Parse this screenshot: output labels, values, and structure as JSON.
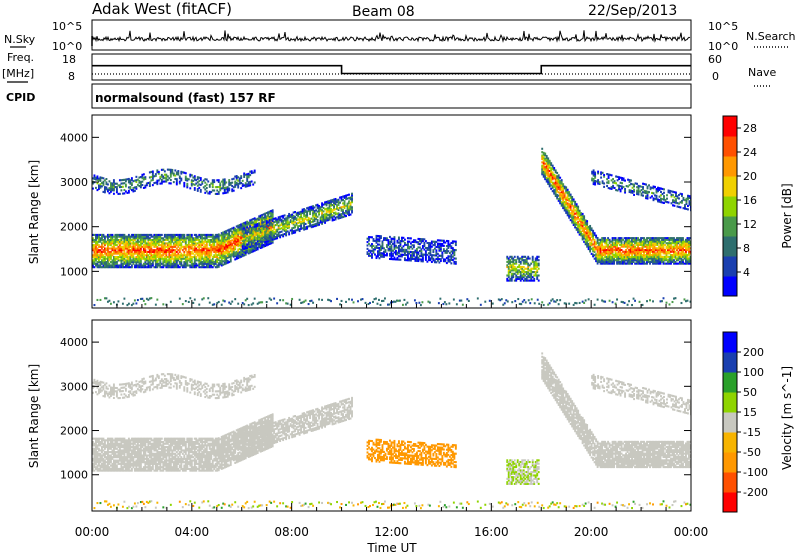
{
  "header": {
    "station": "Adak West (fitACF)",
    "beam": "Beam 08",
    "date": "22/Sep/2013"
  },
  "left_labels": {
    "nsky": "N.Sky",
    "freq": "Freq.",
    "mhz": "[MHz]",
    "cpid": "CPID"
  },
  "right_labels": {
    "nsearch": "N.Search",
    "nave": "Nave"
  },
  "ticks": {
    "noise_top": "10^5",
    "noise_bottom": "10^0",
    "freq_top": "18",
    "freq_bottom": "8",
    "nave_top": "60",
    "nave_bottom": "0"
  },
  "cpid_text": "normalsound (fast) 157 RF",
  "x_axis": {
    "label": "Time UT",
    "ticks": [
      "00:00",
      "04:00",
      "08:00",
      "12:00",
      "16:00",
      "20:00",
      "00:00"
    ]
  },
  "colors": {
    "power": [
      "#0000ff",
      "#1a3fb0",
      "#2e6e6e",
      "#4a9a4a",
      "#8fd400",
      "#f0d000",
      "#ff9800",
      "#ff5000",
      "#ff0000"
    ],
    "velocity": [
      "#ff0000",
      "#ff5000",
      "#ff9800",
      "#f7b400",
      "#c8c8c0",
      "#8fd400",
      "#2aa02a",
      "#1a3fb0",
      "#0000ff"
    ],
    "ground": "#c8c8c0"
  },
  "chart_data": [
    {
      "type": "line",
      "name": "noise",
      "x_range_hours": [
        0,
        24
      ],
      "ylim": [
        1,
        100000
      ],
      "yscale": "log"
    },
    {
      "type": "line",
      "name": "frequency",
      "ylim": [
        8,
        18
      ],
      "series": [
        {
          "name": "Freq.",
          "x": [
            0,
            10,
            10,
            18,
            18,
            24
          ],
          "values": [
            13.5,
            13.5,
            10.5,
            10.5,
            13.5,
            13.5
          ]
        },
        {
          "name": "Nave",
          "x": [
            0,
            24
          ],
          "values": [
            10,
            10
          ]
        }
      ]
    },
    {
      "type": "heatmap",
      "name": "power",
      "xlabel": "Time UT",
      "ylabel": "Slant Range [km]",
      "ylim": [
        180,
        4500
      ],
      "y_ticks": [
        1000,
        2000,
        3000,
        4000
      ],
      "colorbar": {
        "label": "Power [dB]",
        "ticks": [
          4,
          8,
          12,
          16,
          20,
          24,
          28
        ],
        "range": [
          0,
          30
        ]
      }
    },
    {
      "type": "heatmap",
      "name": "velocity",
      "xlabel": "Time UT",
      "ylabel": "Slant Range [km]",
      "ylim": [
        180,
        4500
      ],
      "y_ticks": [
        1000,
        2000,
        3000,
        4000
      ],
      "colorbar": {
        "label": "Velocity [m s^-1]",
        "ticks": [
          200,
          100,
          50,
          15,
          -15,
          -50,
          -100,
          -200
        ]
      }
    }
  ]
}
